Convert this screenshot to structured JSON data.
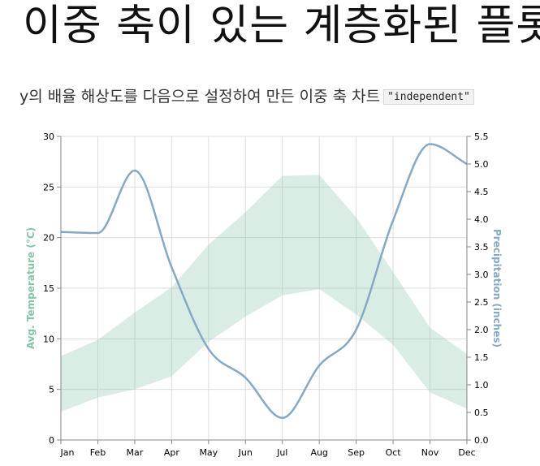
{
  "page": {
    "title": "이중 축이 있는 계층화된 플롯",
    "subtitle": "y의 배율 해상도를 다음으로 설정하여 만든 이중 축 차트",
    "code": "\"independent\""
  },
  "chart_data": {
    "type": "area",
    "x": [
      "Jan",
      "Feb",
      "Mar",
      "Apr",
      "May",
      "Jun",
      "Jul",
      "Aug",
      "Sep",
      "Oct",
      "Nov",
      "Dec"
    ],
    "series": [
      {
        "kind": "band",
        "axis": "left",
        "color": "#85C5A6",
        "upper": [
          8.3,
          9.9,
          12.6,
          15.1,
          19.3,
          22.5,
          26.1,
          26.2,
          22.0,
          16.6,
          11.1,
          8.5
        ],
        "lower": [
          2.8,
          4.2,
          5.0,
          6.3,
          9.7,
          12.2,
          14.3,
          14.9,
          12.4,
          9.4,
          4.7,
          3.1
        ]
      },
      {
        "kind": "line",
        "axis": "right",
        "color": "#85A9C5",
        "values": [
          3.77,
          3.75,
          4.88,
          3.13,
          1.65,
          1.13,
          0.4,
          1.35,
          2.0,
          3.98,
          5.36,
          5.0
        ]
      }
    ],
    "y_left": {
      "label": "Avg. Temperature (°C)",
      "color": "#85C5A6",
      "min": 0,
      "max": 30,
      "ticks": [
        "0",
        "5",
        "10",
        "15",
        "20",
        "25",
        "30"
      ]
    },
    "y_right": {
      "label": "Precipitation (inches)",
      "color": "#85A9C5",
      "min": 0,
      "max": 5.5,
      "ticks": [
        "0.0",
        "0.5",
        "1.0",
        "1.5",
        "2.0",
        "2.5",
        "3.0",
        "3.5",
        "4.0",
        "4.5",
        "5.0",
        "5.5"
      ]
    },
    "grid": true
  }
}
